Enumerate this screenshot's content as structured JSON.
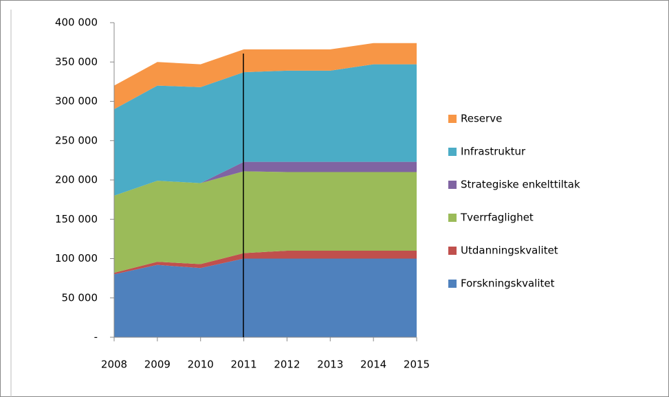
{
  "chart_data": {
    "type": "stacked_area",
    "categories": [
      "2008",
      "2009",
      "2010",
      "2011",
      "2012",
      "2013",
      "2014",
      "2015"
    ],
    "series": [
      {
        "name": "Forskningskvalitet",
        "color": "#4f81bd",
        "values": [
          80000,
          92000,
          88000,
          100000,
          100000,
          100000,
          100000,
          100000
        ]
      },
      {
        "name": "Utdanningskvalitet",
        "color": "#c0504d",
        "values": [
          2000,
          4000,
          5000,
          7000,
          10000,
          10000,
          10000,
          10000
        ]
      },
      {
        "name": "Tverrfaglighet",
        "color": "#9bbb59",
        "values": [
          98000,
          103000,
          103000,
          104000,
          100000,
          100000,
          100000,
          100000
        ]
      },
      {
        "name": "Strategiske enkelttiltak",
        "color": "#8064a2",
        "values": [
          0,
          0,
          0,
          12000,
          13000,
          13000,
          13000,
          13000
        ]
      },
      {
        "name": "Infrastruktur",
        "color": "#4bacc6",
        "values": [
          110000,
          121000,
          122000,
          114000,
          116000,
          116000,
          124000,
          124000
        ]
      },
      {
        "name": "Reserve",
        "color": "#f79646",
        "values": [
          30000,
          30000,
          29000,
          29000,
          27000,
          27000,
          27000,
          27000
        ]
      }
    ],
    "ylim": [
      0,
      400000
    ],
    "yticks": [
      {
        "value": 0,
        "label": "-"
      },
      {
        "value": 50000,
        "label": "50 000"
      },
      {
        "value": 100000,
        "label": "100 000"
      },
      {
        "value": 150000,
        "label": "150 000"
      },
      {
        "value": 200000,
        "label": "200 000"
      },
      {
        "value": 250000,
        "label": "250 000"
      },
      {
        "value": 300000,
        "label": "300 000"
      },
      {
        "value": 350000,
        "label": "350 000"
      },
      {
        "value": 400000,
        "label": "400 000"
      }
    ],
    "legend": "right"
  }
}
